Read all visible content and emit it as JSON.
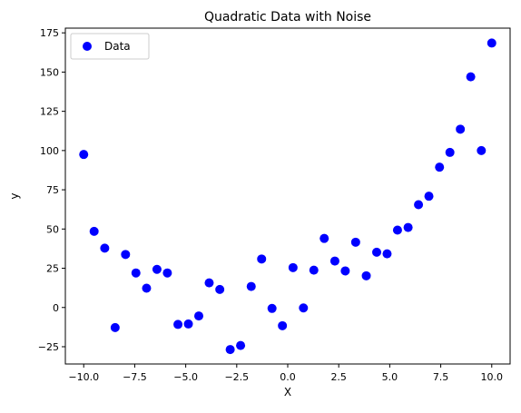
{
  "chart_data": {
    "type": "scatter",
    "title": "Quadratic Data with Noise",
    "xlabel": "X",
    "ylabel": "y",
    "xlim": [
      -10.9,
      10.9
    ],
    "ylim": [
      -36,
      178
    ],
    "xticks": [
      -10.0,
      -7.5,
      -5.0,
      -2.5,
      0.0,
      2.5,
      5.0,
      7.5,
      10.0
    ],
    "xtick_labels": [
      "−10.0",
      "−7.5",
      "−5.0",
      "−2.5",
      "0.0",
      "2.5",
      "5.0",
      "7.5",
      "10.0"
    ],
    "yticks": [
      -25,
      0,
      25,
      50,
      75,
      100,
      125,
      150,
      175
    ],
    "ytick_labels": [
      "−25",
      "0",
      "25",
      "50",
      "75",
      "100",
      "125",
      "150",
      "175"
    ],
    "grid": false,
    "legend": {
      "placement": "top-left",
      "entries": [
        "Data"
      ]
    },
    "series": [
      {
        "name": "Data",
        "color": "#0000ff",
        "x": [
          -10.0,
          -9.49,
          -8.97,
          -8.46,
          -7.95,
          -7.44,
          -6.92,
          -6.41,
          -5.9,
          -5.38,
          -4.87,
          -4.36,
          -3.85,
          -3.33,
          -2.82,
          -2.31,
          -1.79,
          -1.28,
          -0.77,
          -0.26,
          0.26,
          0.77,
          1.28,
          1.79,
          2.31,
          2.82,
          3.33,
          3.85,
          4.36,
          4.87,
          5.38,
          5.9,
          6.41,
          6.92,
          7.44,
          7.95,
          8.46,
          8.97,
          9.49,
          10.0
        ],
        "y": [
          97.5,
          48.5,
          37.8,
          -12.8,
          33.8,
          22.0,
          12.3,
          24.3,
          22.0,
          -10.8,
          -10.5,
          -5.4,
          15.7,
          11.5,
          -26.8,
          -24.2,
          13.4,
          30.9,
          -0.6,
          -11.6,
          25.4,
          -0.3,
          23.8,
          44.0,
          29.6,
          23.3,
          41.6,
          20.2,
          35.2,
          34.2,
          49.3,
          51.0,
          65.5,
          70.9,
          89.4,
          98.8,
          113.6,
          147.0,
          100.0,
          168.5
        ]
      }
    ]
  }
}
